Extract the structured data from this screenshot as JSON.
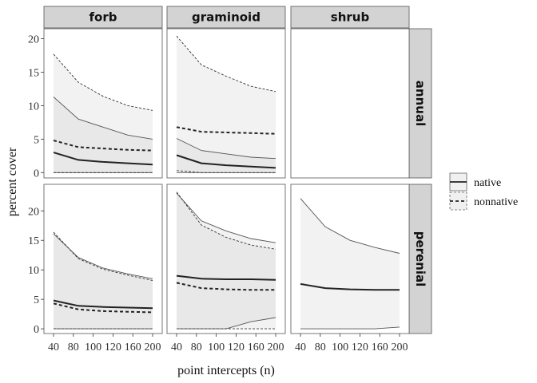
{
  "chart_data": {
    "type": "line",
    "facet_columns": [
      "forb",
      "graminoid",
      "shrub"
    ],
    "facet_rows": [
      "annual",
      "perenial"
    ],
    "xlabel": "point intercepts (n)",
    "ylabel": "percent cover",
    "x": [
      40,
      80,
      120,
      160,
      200
    ],
    "x_tick_labels": [
      "40",
      "80",
      "100",
      "120",
      "160",
      "200"
    ],
    "xlim": [
      40,
      200
    ],
    "y_ticks": [
      0,
      5,
      10,
      15,
      20
    ],
    "grid": false,
    "legend": {
      "position": "right",
      "entries": [
        {
          "label": "native",
          "linetype": "solid"
        },
        {
          "label": "nonnative",
          "linetype": "dashed"
        }
      ]
    },
    "panels": [
      {
        "column": "forb",
        "row": "annual",
        "ylim": [
          -0.8,
          21.5
        ],
        "series": [
          {
            "name": "native",
            "mean": [
              3.0,
              1.9,
              1.6,
              1.4,
              1.2
            ],
            "lower": [
              0.0,
              0.0,
              0.0,
              0.0,
              0.0
            ],
            "upper": [
              11.3,
              8.0,
              6.8,
              5.6,
              5.0
            ]
          },
          {
            "name": "nonnative",
            "mean": [
              4.8,
              3.8,
              3.6,
              3.4,
              3.3
            ],
            "lower": [
              0.0,
              0.0,
              0.0,
              0.0,
              0.0
            ],
            "upper": [
              17.7,
              13.5,
              11.4,
              10.0,
              9.3
            ]
          }
        ]
      },
      {
        "column": "graminoid",
        "row": "annual",
        "ylim": [
          -0.8,
          21.5
        ],
        "series": [
          {
            "name": "native",
            "mean": [
              2.6,
              1.4,
              1.1,
              0.9,
              0.7
            ],
            "lower": [
              0.0,
              0.0,
              0.0,
              0.0,
              0.0
            ],
            "upper": [
              5.1,
              3.3,
              2.8,
              2.3,
              2.1
            ]
          },
          {
            "name": "nonnative",
            "mean": [
              6.8,
              6.1,
              6.0,
              5.9,
              5.8
            ],
            "lower": [
              0.3,
              0.0,
              0.0,
              0.0,
              0.0
            ],
            "upper": [
              20.4,
              16.1,
              14.4,
              12.9,
              12.1
            ]
          }
        ]
      },
      {
        "column": "shrub",
        "row": "annual",
        "ylim": [
          -0.8,
          21.5
        ],
        "series": []
      },
      {
        "column": "forb",
        "row": "perenial",
        "ylim": [
          -0.8,
          24.5
        ],
        "series": [
          {
            "name": "native",
            "mean": [
              4.8,
              3.9,
              3.7,
              3.6,
              3.5
            ],
            "lower": [
              0.0,
              0.0,
              0.0,
              0.0,
              0.0
            ],
            "upper": [
              16.1,
              12.1,
              10.3,
              9.3,
              8.5
            ]
          },
          {
            "name": "nonnative",
            "mean": [
              4.3,
              3.3,
              3.0,
              2.9,
              2.8
            ],
            "lower": [
              0.0,
              0.0,
              0.0,
              0.0,
              0.0
            ],
            "upper": [
              16.4,
              11.9,
              10.1,
              9.1,
              8.2
            ]
          }
        ]
      },
      {
        "column": "graminoid",
        "row": "perenial",
        "ylim": [
          -0.8,
          24.5
        ],
        "series": [
          {
            "name": "native",
            "mean": [
              9.0,
              8.5,
              8.4,
              8.4,
              8.3
            ],
            "lower": [
              0.0,
              0.0,
              0.0,
              1.2,
              1.9
            ],
            "upper": [
              23.0,
              18.3,
              16.6,
              15.3,
              14.6
            ]
          },
          {
            "name": "nonnative",
            "mean": [
              7.8,
              6.9,
              6.7,
              6.6,
              6.6
            ],
            "lower": [
              0.0,
              0.0,
              0.0,
              0.0,
              0.0
            ],
            "upper": [
              23.2,
              17.6,
              15.5,
              14.2,
              13.5
            ]
          }
        ]
      },
      {
        "column": "shrub",
        "row": "perenial",
        "ylim": [
          -0.8,
          24.5
        ],
        "series": [
          {
            "name": "native",
            "mean": [
              7.6,
              6.9,
              6.7,
              6.6,
              6.6
            ],
            "lower": [
              0.0,
              0.0,
              0.0,
              0.0,
              0.3
            ],
            "upper": [
              22.1,
              17.3,
              15.0,
              13.8,
              12.8
            ]
          }
        ]
      }
    ]
  }
}
